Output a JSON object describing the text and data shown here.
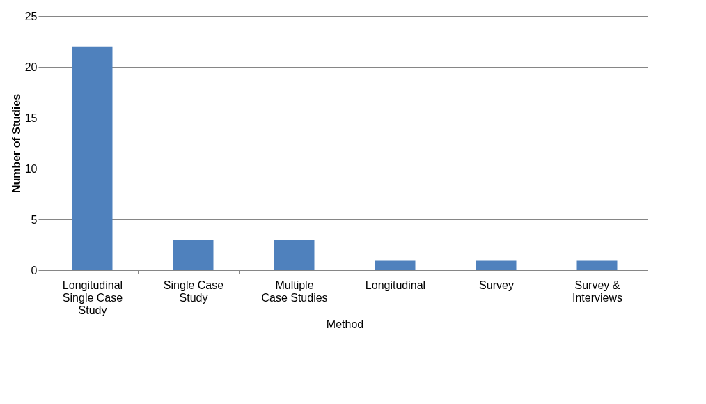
{
  "chart_data": {
    "type": "bar",
    "categories": [
      "Longitudinal Single Case Study",
      "Single Case Study",
      "Multiple Case Studies",
      "Longitudinal",
      "Survey",
      "Survey & Interviews"
    ],
    "values": [
      22,
      3,
      3,
      1,
      1,
      1
    ],
    "color": "#4f81bd",
    "xlabel": "Method",
    "ylabel": "Number of Studies",
    "ylim": [
      0,
      25
    ],
    "yticks": [
      0,
      5,
      10,
      15,
      20,
      25
    ],
    "grid": "y"
  }
}
